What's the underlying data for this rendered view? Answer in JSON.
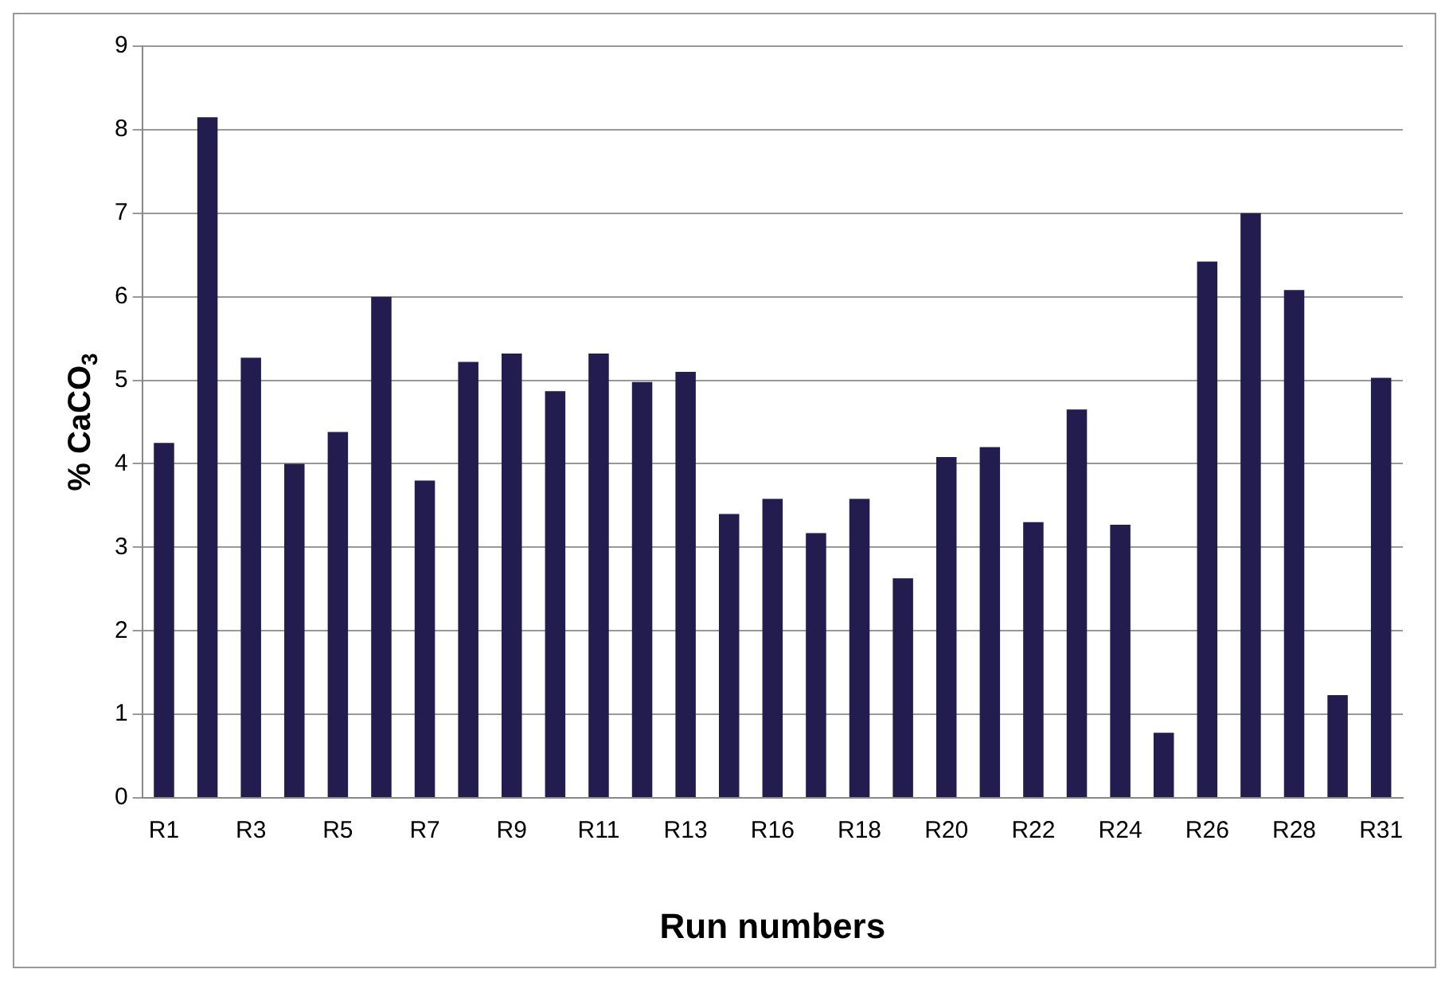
{
  "chart_data": {
    "type": "bar",
    "xlabel": "Run numbers",
    "ylabel": "% CaCO$_{3}$",
    "categories": [
      "R1",
      null,
      "R3",
      null,
      "R5",
      null,
      "R7",
      null,
      "R9",
      null,
      "R11",
      null,
      "R13",
      null,
      "R16",
      null,
      "R18",
      null,
      "R20",
      null,
      "R22",
      null,
      "R24",
      null,
      "R26",
      null,
      "R28",
      null,
      "R31"
    ],
    "values": [
      4.25,
      8.15,
      5.27,
      4.0,
      4.38,
      6.0,
      3.8,
      5.22,
      5.32,
      4.87,
      5.32,
      4.98,
      5.1,
      3.4,
      3.58,
      3.17,
      3.58,
      2.63,
      4.08,
      4.2,
      3.3,
      4.65,
      3.27,
      0.78,
      6.42,
      7.0,
      6.08,
      1.23,
      5.03
    ],
    "color": "#231c4f",
    "ylim": [
      0,
      9
    ],
    "yticks": [
      0,
      1,
      2,
      3,
      4,
      5,
      6,
      7,
      8,
      9
    ],
    "grid": "y",
    "legend": false
  }
}
